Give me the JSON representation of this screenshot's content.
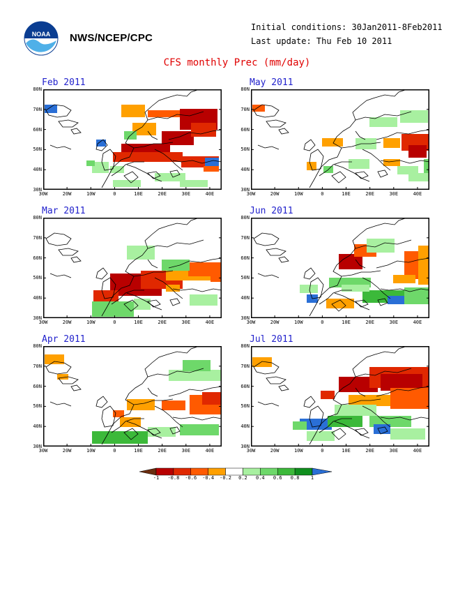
{
  "header": {
    "org": "NWS/NCEP/CPC",
    "initial_conditions": "Initial conditions: 30Jan2011-8Feb2011",
    "last_update": "Last update: Thu Feb 10 2011",
    "title": "CFS monthly Prec (mm/day)",
    "logo_text": "NOAA"
  },
  "axes": {
    "lat_labels": [
      "80N",
      "70N",
      "60N",
      "50N",
      "40N",
      "30N"
    ],
    "lon_labels": [
      "30W",
      "20W",
      "10W",
      "0",
      "10E",
      "20E",
      "30E",
      "40E"
    ]
  },
  "panels": [
    {
      "id": "feb",
      "label": "Feb 2011"
    },
    {
      "id": "may",
      "label": "May 2011"
    },
    {
      "id": "mar",
      "label": "Mar 2011"
    },
    {
      "id": "jun",
      "label": "Jun 2011"
    },
    {
      "id": "apr",
      "label": "Apr 2011"
    },
    {
      "id": "jul",
      "label": "Jul 2011"
    }
  ],
  "colorbar": {
    "labels": [
      "-1",
      "-0.8",
      "-0.6",
      "-0.4",
      "-0.2",
      "0.2",
      "0.4",
      "0.6",
      "0.8",
      "1"
    ],
    "colors": [
      "#6b2d0f",
      "#b80000",
      "#e02800",
      "#ff5a00",
      "#ffa000",
      "#ffffff",
      "#a8f0a0",
      "#6ed86a",
      "#3cb93a",
      "#0f8f1e",
      "#2a6fd6"
    ]
  },
  "colors": {
    "title": "#e00000",
    "panel_label": "#2222cc"
  }
}
